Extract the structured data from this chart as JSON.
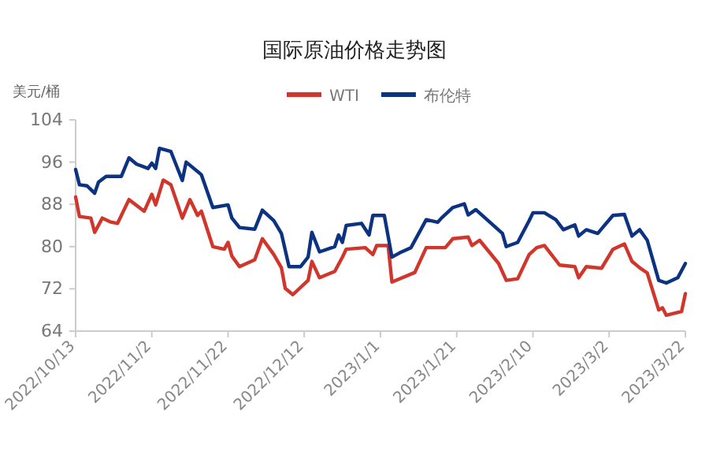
{
  "chart_data": {
    "type": "line",
    "title": "国际原油价格走势图",
    "ylabel": "美元/桶",
    "legend": "top",
    "xlim": [
      "2022-10-13",
      "2023-03-22"
    ],
    "xticks": [
      {
        "value": "2022-10-13",
        "label": "2022/10/13"
      },
      {
        "value": "2022-11-02",
        "label": "2022/11/2"
      },
      {
        "value": "2022-11-22",
        "label": "2022/11/22"
      },
      {
        "value": "2022-12-12",
        "label": "2022/12/12"
      },
      {
        "value": "2023-01-01",
        "label": "2023/1/1"
      },
      {
        "value": "2023-01-21",
        "label": "2023/1/21"
      },
      {
        "value": "2023-02-10",
        "label": "2023/2/10"
      },
      {
        "value": "2023-03-02",
        "label": "2023/3/2"
      },
      {
        "value": "2023-03-22",
        "label": "2023/3/22"
      }
    ],
    "ylim": [
      64,
      104
    ],
    "yticks": [
      64,
      72,
      80,
      88,
      96,
      104
    ],
    "series": [
      {
        "name": "WTI",
        "color": "#d0362b",
        "x": [
          "2022-10-13",
          "2022-10-14",
          "2022-10-17",
          "2022-10-18",
          "2022-10-20",
          "2022-10-22",
          "2022-10-24",
          "2022-10-27",
          "2022-10-31",
          "2022-11-02",
          "2022-11-03",
          "2022-11-05",
          "2022-11-07",
          "2022-11-10",
          "2022-11-12",
          "2022-11-14",
          "2022-11-15",
          "2022-11-18",
          "2022-11-21",
          "2022-11-22",
          "2022-11-23",
          "2022-11-25",
          "2022-11-29",
          "2022-12-01",
          "2022-12-04",
          "2022-12-06",
          "2022-12-07",
          "2022-12-09",
          "2022-12-13",
          "2022-12-14",
          "2022-12-16",
          "2022-12-20",
          "2022-12-22",
          "2022-12-23",
          "2022-12-28",
          "2022-12-30",
          "2022-12-31",
          "2023-01-03",
          "2023-01-04",
          "2023-01-06",
          "2023-01-10",
          "2023-01-13",
          "2023-01-18",
          "2023-01-20",
          "2023-01-24",
          "2023-01-25",
          "2023-01-27",
          "2023-02-01",
          "2023-02-03",
          "2023-02-06",
          "2023-02-09",
          "2023-02-11",
          "2023-02-13",
          "2023-02-17",
          "2023-02-21",
          "2023-02-22",
          "2023-02-24",
          "2023-02-28",
          "2023-03-03",
          "2023-03-06",
          "2023-03-08",
          "2023-03-10",
          "2023-03-12",
          "2023-03-15",
          "2023-03-16",
          "2023-03-17",
          "2023-03-21",
          "2023-03-22"
        ],
        "values": [
          89.4,
          85.7,
          85.4,
          82.7,
          85.4,
          84.7,
          84.4,
          88.9,
          86.7,
          89.9,
          87.9,
          92.6,
          91.7,
          85.4,
          88.9,
          85.9,
          86.7,
          80,
          79.5,
          80.8,
          78.2,
          76.2,
          77.5,
          81.5,
          78.5,
          76,
          72.1,
          70.9,
          73.6,
          77.2,
          74.1,
          75.3,
          78,
          79.5,
          79.8,
          78.5,
          80.2,
          80.2,
          73.3,
          73.9,
          75.1,
          79.8,
          79.8,
          81.5,
          81.8,
          80.2,
          81.2,
          76.8,
          73.6,
          73.9,
          78.5,
          79.8,
          80.2,
          76.5,
          76.2,
          74.1,
          76.2,
          75.9,
          79.5,
          80.5,
          77.2,
          76,
          75,
          68,
          68.4,
          67,
          67.7,
          71.1
        ]
      },
      {
        "name": "布伦特",
        "color": "#0c3382",
        "x": [
          "2022-10-13",
          "2022-10-14",
          "2022-10-16",
          "2022-10-18",
          "2022-10-19",
          "2022-10-21",
          "2022-10-25",
          "2022-10-27",
          "2022-10-29",
          "2022-11-01",
          "2022-11-02",
          "2022-11-03",
          "2022-11-04",
          "2022-11-07",
          "2022-11-10",
          "2022-11-11",
          "2022-11-15",
          "2022-11-18",
          "2022-11-22",
          "2022-11-23",
          "2022-11-25",
          "2022-11-29",
          "2022-12-01",
          "2022-12-04",
          "2022-12-06",
          "2022-12-08",
          "2022-12-11",
          "2022-12-13",
          "2022-12-14",
          "2022-12-16",
          "2022-12-20",
          "2022-12-21",
          "2022-12-22",
          "2022-12-23",
          "2022-12-27",
          "2022-12-29",
          "2022-12-30",
          "2023-01-02",
          "2023-01-04",
          "2023-01-06",
          "2023-01-09",
          "2023-01-13",
          "2023-01-16",
          "2023-01-17",
          "2023-01-20",
          "2023-01-23",
          "2023-01-24",
          "2023-01-26",
          "2023-02-02",
          "2023-02-03",
          "2023-02-06",
          "2023-02-09",
          "2023-02-10",
          "2023-02-13",
          "2023-02-16",
          "2023-02-18",
          "2023-02-21",
          "2023-02-22",
          "2023-02-24",
          "2023-02-27",
          "2023-03-03",
          "2023-03-06",
          "2023-03-08",
          "2023-03-10",
          "2023-03-12",
          "2023-03-15",
          "2023-03-17",
          "2023-03-20",
          "2023-03-22"
        ],
        "values": [
          94.6,
          91.7,
          91.5,
          90.1,
          92.2,
          93.3,
          93.3,
          96.8,
          95.6,
          94.8,
          95.8,
          94.8,
          98.6,
          98,
          92.5,
          96,
          93.6,
          87.4,
          87.9,
          85.4,
          83.6,
          83.3,
          86.9,
          84.9,
          82.5,
          76.2,
          76.2,
          78,
          82.7,
          79,
          80,
          82.2,
          80.8,
          84,
          84.4,
          82.2,
          85.9,
          85.9,
          78,
          78.8,
          79.8,
          85.1,
          84.6,
          85.4,
          87.4,
          88.1,
          86,
          87,
          82.5,
          80,
          80.8,
          84.9,
          86.4,
          86.4,
          85.1,
          83.2,
          84.1,
          82,
          83.2,
          82.5,
          85.9,
          86.1,
          82,
          83.2,
          81.2,
          73.6,
          73.1,
          74.1,
          76.8
        ]
      }
    ]
  }
}
